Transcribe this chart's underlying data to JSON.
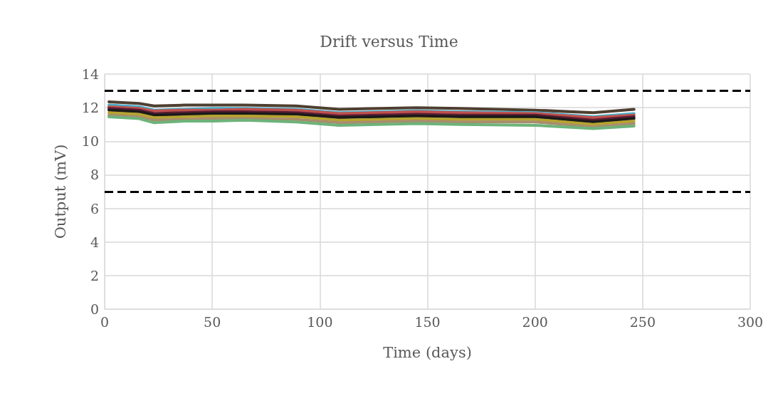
{
  "chart_data": {
    "type": "line",
    "title": "Drift versus Time",
    "xlabel": "Time (days)",
    "ylabel": "Output (mV)",
    "x": [
      2,
      16,
      23,
      37,
      51,
      65,
      89,
      109,
      145,
      165,
      200,
      227,
      246
    ],
    "series": [
      {
        "color": "#4e3f30",
        "values": [
          12.35,
          12.25,
          12.1,
          12.15,
          12.15,
          12.15,
          12.1,
          11.9,
          12.0,
          11.95,
          11.85,
          11.7,
          11.9
        ]
      },
      {
        "color": "#4aacc6",
        "values": [
          12.15,
          12.05,
          11.85,
          11.9,
          11.95,
          11.95,
          11.9,
          11.7,
          11.8,
          11.75,
          11.7,
          11.45,
          11.65
        ]
      },
      {
        "color": "#c0504d",
        "values": [
          12.05,
          11.95,
          11.8,
          11.85,
          11.85,
          11.9,
          11.85,
          11.65,
          11.75,
          11.7,
          11.65,
          11.4,
          11.55
        ]
      },
      {
        "color": "#5a1e32",
        "values": [
          11.95,
          11.85,
          11.65,
          11.7,
          11.75,
          11.75,
          11.7,
          11.5,
          11.6,
          11.55,
          11.55,
          11.25,
          11.45
        ]
      },
      {
        "color": "#1a1a1a",
        "values": [
          11.85,
          11.75,
          11.55,
          11.6,
          11.65,
          11.65,
          11.6,
          11.4,
          11.5,
          11.45,
          11.45,
          11.15,
          11.35
        ]
      },
      {
        "color": "#b5a42e",
        "values": [
          11.7,
          11.6,
          11.4,
          11.45,
          11.5,
          11.5,
          11.45,
          11.25,
          11.35,
          11.3,
          11.3,
          11.0,
          11.2
        ]
      },
      {
        "color": "#a88d6c",
        "values": [
          11.55,
          11.45,
          11.25,
          11.3,
          11.35,
          11.35,
          11.3,
          11.1,
          11.2,
          11.15,
          11.15,
          10.85,
          11.05
        ]
      },
      {
        "color": "#6db37a",
        "values": [
          11.45,
          11.35,
          11.1,
          11.2,
          11.2,
          11.25,
          11.15,
          10.95,
          11.05,
          11.0,
          10.95,
          10.75,
          10.9
        ]
      }
    ],
    "xlim": [
      0,
      300
    ],
    "xticks": [
      0,
      50,
      100,
      150,
      200,
      250,
      300
    ],
    "ylim": [
      0,
      14
    ],
    "yticks": [
      0,
      2,
      4,
      6,
      8,
      10,
      12,
      14
    ],
    "ref_lines": [
      {
        "axis": "y",
        "value": 13,
        "color": "#000000",
        "line_style": "dashed"
      },
      {
        "axis": "y",
        "value": 7,
        "color": "#000000",
        "line_style": "dashed"
      }
    ],
    "grid": true,
    "marker": "none",
    "line_style": "solid"
  }
}
